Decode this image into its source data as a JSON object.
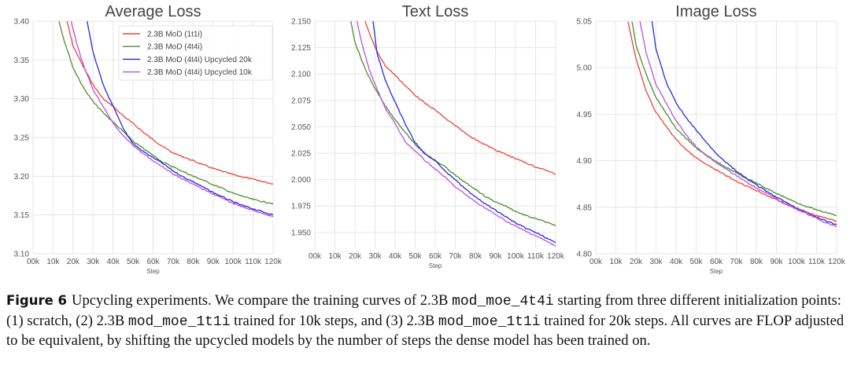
{
  "chart_data": [
    {
      "type": "line",
      "title": "Average Loss",
      "xlabel": "Step",
      "ylabel": "",
      "xlim": [
        0,
        120000
      ],
      "ylim": [
        3.1,
        3.4
      ],
      "xticks": [
        "00k",
        "10k",
        "20k",
        "30k",
        "40k",
        "50k",
        "60k",
        "70k",
        "80k",
        "90k",
        "100k",
        "110k",
        "120k"
      ],
      "yticks": [
        "3.10",
        "3.15",
        "3.20",
        "3.25",
        "3.30",
        "3.35",
        "3.40"
      ],
      "grid": true,
      "legend": "top-right",
      "series": [
        {
          "name": "2.3B MoD (1t1i)",
          "color": "#e8463a",
          "x": [
            17000,
            20000,
            25000,
            30000,
            35000,
            40000,
            45000,
            50000,
            55000,
            60000,
            65000,
            70000,
            75000,
            80000,
            85000,
            90000,
            95000,
            100000,
            105000,
            110000,
            115000,
            120000
          ],
          "y": [
            3.4,
            3.368,
            3.342,
            3.318,
            3.3,
            3.29,
            3.278,
            3.268,
            3.257,
            3.247,
            3.238,
            3.23,
            3.225,
            3.22,
            3.215,
            3.21,
            3.206,
            3.202,
            3.199,
            3.196,
            3.193,
            3.19
          ]
        },
        {
          "name": "2.3B MoD (4t4i)",
          "color": "#4a8f2f",
          "x": [
            13000,
            15000,
            20000,
            25000,
            30000,
            35000,
            40000,
            45000,
            50000,
            55000,
            60000,
            65000,
            70000,
            75000,
            80000,
            85000,
            90000,
            95000,
            100000,
            105000,
            110000,
            115000,
            120000
          ],
          "y": [
            3.4,
            3.38,
            3.34,
            3.315,
            3.296,
            3.282,
            3.27,
            3.258,
            3.245,
            3.236,
            3.227,
            3.218,
            3.212,
            3.206,
            3.2,
            3.195,
            3.189,
            3.184,
            3.178,
            3.174,
            3.17,
            3.167,
            3.165
          ]
        },
        {
          "name": "2.3B MoD (4t4i) Upcycled 20k",
          "color": "#2a2ae0",
          "x": [
            27000,
            30000,
            35000,
            40000,
            45000,
            50000,
            55000,
            60000,
            65000,
            70000,
            75000,
            80000,
            85000,
            90000,
            95000,
            100000,
            105000,
            110000,
            115000,
            120000
          ],
          "y": [
            3.4,
            3.36,
            3.318,
            3.29,
            3.262,
            3.242,
            3.232,
            3.224,
            3.216,
            3.207,
            3.199,
            3.193,
            3.186,
            3.179,
            3.173,
            3.167,
            3.162,
            3.158,
            3.154,
            3.15
          ]
        },
        {
          "name": "2.3B MoD (4t4i) Upcycled 10k",
          "color": "#c050dc",
          "x": [
            19000,
            22000,
            25000,
            30000,
            35000,
            40000,
            45000,
            50000,
            55000,
            60000,
            65000,
            70000,
            75000,
            80000,
            85000,
            90000,
            95000,
            100000,
            105000,
            110000,
            115000,
            120000
          ],
          "y": [
            3.4,
            3.37,
            3.345,
            3.312,
            3.29,
            3.268,
            3.252,
            3.24,
            3.229,
            3.22,
            3.212,
            3.203,
            3.196,
            3.19,
            3.183,
            3.177,
            3.171,
            3.165,
            3.16,
            3.156,
            3.152,
            3.148
          ]
        }
      ]
    },
    {
      "type": "line",
      "title": "Text Loss",
      "xlabel": "Step",
      "ylabel": "",
      "xlim": [
        0,
        120000
      ],
      "ylim": [
        1.935,
        2.15
      ],
      "xticks": [
        "00k",
        "10k",
        "20k",
        "30k",
        "40k",
        "50k",
        "60k",
        "70k",
        "80k",
        "90k",
        "100k",
        "110k",
        "120k"
      ],
      "yticks": [
        "1.950",
        "1.975",
        "2.000",
        "2.025",
        "2.050",
        "2.075",
        "2.100",
        "2.125",
        "2.150"
      ],
      "grid": true,
      "legend": "none",
      "series": [
        {
          "name": "2.3B MoD (1t1i)",
          "color": "#e8463a",
          "x": [
            25000,
            30000,
            35000,
            40000,
            45000,
            50000,
            55000,
            60000,
            65000,
            70000,
            75000,
            80000,
            85000,
            90000,
            95000,
            100000,
            105000,
            110000,
            115000,
            120000
          ],
          "y": [
            2.15,
            2.125,
            2.108,
            2.099,
            2.089,
            2.08,
            2.072,
            2.066,
            2.058,
            2.051,
            2.044,
            2.038,
            2.033,
            2.028,
            2.024,
            2.02,
            2.016,
            2.012,
            2.009,
            2.005
          ]
        },
        {
          "name": "2.3B MoD (4t4i)",
          "color": "#4a8f2f",
          "x": [
            18000,
            20000,
            25000,
            30000,
            35000,
            40000,
            45000,
            50000,
            55000,
            60000,
            65000,
            70000,
            75000,
            80000,
            85000,
            90000,
            95000,
            100000,
            105000,
            110000,
            115000,
            120000
          ],
          "y": [
            2.15,
            2.13,
            2.105,
            2.086,
            2.07,
            2.057,
            2.045,
            2.033,
            2.025,
            2.018,
            2.012,
            2.004,
            1.997,
            1.991,
            1.984,
            1.979,
            1.975,
            1.97,
            1.966,
            1.963,
            1.96,
            1.956
          ]
        },
        {
          "name": "2.3B MoD (4t4i) Upcycled 20k",
          "color": "#2a2ae0",
          "x": [
            29000,
            31000,
            35000,
            40000,
            45000,
            50000,
            55000,
            60000,
            65000,
            70000,
            75000,
            80000,
            85000,
            90000,
            95000,
            100000,
            105000,
            110000,
            115000,
            120000
          ],
          "y": [
            2.15,
            2.12,
            2.095,
            2.073,
            2.053,
            2.035,
            2.024,
            2.018,
            2.008,
            2.0,
            1.991,
            1.984,
            1.977,
            1.971,
            1.965,
            1.959,
            1.954,
            1.95,
            1.945,
            1.94
          ]
        },
        {
          "name": "2.3B MoD (4t4i) Upcycled 10k",
          "color": "#c050dc",
          "x": [
            21000,
            24000,
            27000,
            30000,
            35000,
            40000,
            45000,
            50000,
            55000,
            60000,
            65000,
            70000,
            75000,
            80000,
            85000,
            90000,
            95000,
            100000,
            105000,
            110000,
            115000,
            120000
          ],
          "y": [
            2.15,
            2.125,
            2.105,
            2.09,
            2.068,
            2.053,
            2.036,
            2.027,
            2.018,
            2.01,
            2.002,
            1.993,
            1.986,
            1.979,
            1.973,
            1.967,
            1.961,
            1.956,
            1.951,
            1.947,
            1.942,
            1.937
          ]
        }
      ]
    },
    {
      "type": "line",
      "title": "Image Loss",
      "xlabel": "Step",
      "ylabel": "",
      "xlim": [
        0,
        120000
      ],
      "ylim": [
        4.8,
        5.05
      ],
      "xticks": [
        "00k",
        "10k",
        "20k",
        "30k",
        "40k",
        "50k",
        "60k",
        "70k",
        "80k",
        "90k",
        "100k",
        "110k",
        "120k"
      ],
      "yticks": [
        "4.80",
        "4.85",
        "4.90",
        "4.95",
        "5.00",
        "5.05"
      ],
      "grid": true,
      "legend": "none",
      "series": [
        {
          "name": "2.3B MoD (1t1i)",
          "color": "#e8463a",
          "x": [
            16000,
            20000,
            25000,
            30000,
            35000,
            40000,
            45000,
            50000,
            55000,
            60000,
            65000,
            70000,
            75000,
            80000,
            85000,
            90000,
            95000,
            100000,
            105000,
            110000,
            115000,
            120000
          ],
          "y": [
            5.05,
            5.01,
            4.975,
            4.952,
            4.937,
            4.923,
            4.912,
            4.903,
            4.896,
            4.89,
            4.884,
            4.878,
            4.873,
            4.868,
            4.863,
            4.858,
            4.853,
            4.849,
            4.845,
            4.841,
            4.838,
            4.835
          ]
        },
        {
          "name": "2.3B MoD (4t4i)",
          "color": "#4a8f2f",
          "x": [
            18000,
            20000,
            25000,
            30000,
            35000,
            40000,
            45000,
            50000,
            55000,
            60000,
            65000,
            70000,
            75000,
            80000,
            85000,
            90000,
            95000,
            100000,
            105000,
            110000,
            115000,
            120000
          ],
          "y": [
            5.05,
            5.025,
            4.993,
            4.968,
            4.951,
            4.935,
            4.924,
            4.914,
            4.906,
            4.899,
            4.893,
            4.887,
            4.881,
            4.876,
            4.87,
            4.865,
            4.86,
            4.855,
            4.851,
            4.847,
            4.844,
            4.841
          ]
        },
        {
          "name": "2.3B MoD (4t4i) Upcycled 20k",
          "color": "#2a2ae0",
          "x": [
            28000,
            30000,
            35000,
            40000,
            45000,
            50000,
            55000,
            60000,
            65000,
            70000,
            75000,
            80000,
            85000,
            90000,
            95000,
            100000,
            105000,
            110000,
            115000,
            120000
          ],
          "y": [
            5.05,
            5.02,
            4.985,
            4.962,
            4.946,
            4.933,
            4.92,
            4.908,
            4.898,
            4.889,
            4.881,
            4.874,
            4.867,
            4.861,
            4.855,
            4.849,
            4.844,
            4.839,
            4.835,
            4.831
          ]
        },
        {
          "name": "2.3B MoD (4t4i) Upcycled 10k",
          "color": "#c050dc",
          "x": [
            22000,
            25000,
            30000,
            35000,
            40000,
            45000,
            50000,
            55000,
            60000,
            65000,
            70000,
            75000,
            80000,
            85000,
            90000,
            95000,
            100000,
            105000,
            110000,
            115000,
            120000
          ],
          "y": [
            5.05,
            5.017,
            4.982,
            4.962,
            4.943,
            4.928,
            4.915,
            4.906,
            4.898,
            4.891,
            4.884,
            4.877,
            4.871,
            4.865,
            4.859,
            4.853,
            4.848,
            4.843,
            4.838,
            4.833,
            4.829
          ]
        }
      ]
    }
  ],
  "caption": {
    "label": "Figure 6",
    "seg1": "Upcycling experiments. We compare the training curves of 2.3B ",
    "code1": "mod_moe_4t4i",
    "seg2": " starting from three different initialization points: (1) scratch, (2) 2.3B ",
    "code2": "mod_moe_1t1i",
    "seg3": " trained for 10k steps, and (3) 2.3B ",
    "code3": "mod_moe_1t1i",
    "seg4": " trained for 20k steps. All curves are FLOP adjusted to be equivalent, by shifting the upcycled models by the number of steps the dense model has been trained on."
  }
}
